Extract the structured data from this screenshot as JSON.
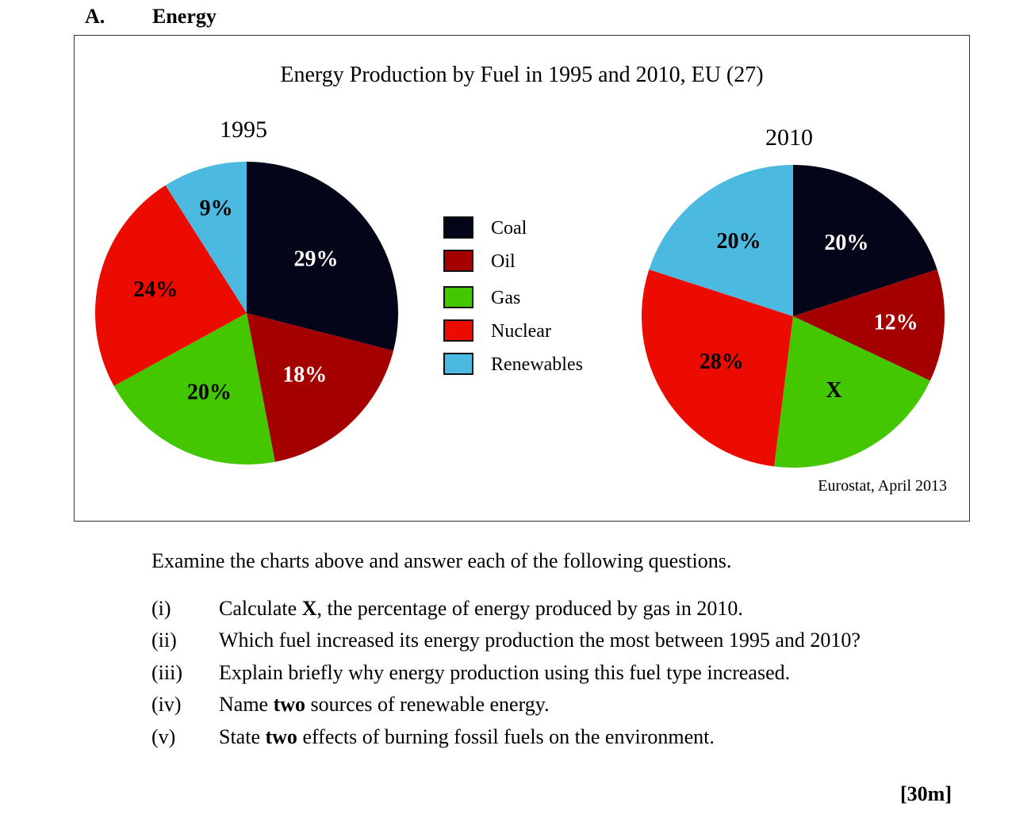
{
  "section": {
    "letter": "A.",
    "title": "Energy"
  },
  "chart_data": {
    "type": "pie",
    "title": "Energy Production by Fuel in 1995 and 2010, EU (27)",
    "categories": [
      "Coal",
      "Oil",
      "Gas",
      "Nuclear",
      "Renewables"
    ],
    "colors": [
      "#05051a",
      "#a50000",
      "#44c600",
      "#ec0b00",
      "#4cb9e0"
    ],
    "series": [
      {
        "name": "1995",
        "values": [
          29,
          18,
          20,
          24,
          9
        ],
        "labels": [
          "29%",
          "18%",
          "20%",
          "24%",
          "9%"
        ],
        "label_colors": [
          "#ffffff",
          "#ffffff",
          "#000000",
          "#000000",
          "#000000"
        ]
      },
      {
        "name": "2010",
        "values": [
          20,
          12,
          20,
          28,
          20
        ],
        "labels": [
          "20%",
          "12%",
          "X",
          "28%",
          "20%"
        ],
        "label_colors": [
          "#ffffff",
          "#ffffff",
          "#000000",
          "#000000",
          "#000000"
        ]
      }
    ],
    "source": "Eurostat, April 2013"
  },
  "intro": "Examine the charts above and answer each of the following questions.",
  "questions": [
    {
      "num": "(i)",
      "parts": [
        {
          "t": "Calculate "
        },
        {
          "t": "X",
          "b": true
        },
        {
          "t": ", the percentage of energy produced by gas in 2010."
        }
      ]
    },
    {
      "num": "(ii)",
      "parts": [
        {
          "t": "Which fuel increased its energy production the most between 1995 and 2010?"
        }
      ]
    },
    {
      "num": "(iii)",
      "parts": [
        {
          "t": "Explain briefly why energy production using this fuel type increased."
        }
      ]
    },
    {
      "num": "(iv)",
      "parts": [
        {
          "t": "Name "
        },
        {
          "t": "two",
          "b": true
        },
        {
          "t": " sources of renewable energy."
        }
      ]
    },
    {
      "num": "(v)",
      "parts": [
        {
          "t": "State "
        },
        {
          "t": "two",
          "b": true
        },
        {
          "t": " effects of burning fossil fuels on the environment."
        }
      ]
    }
  ],
  "marks": "[30m]"
}
